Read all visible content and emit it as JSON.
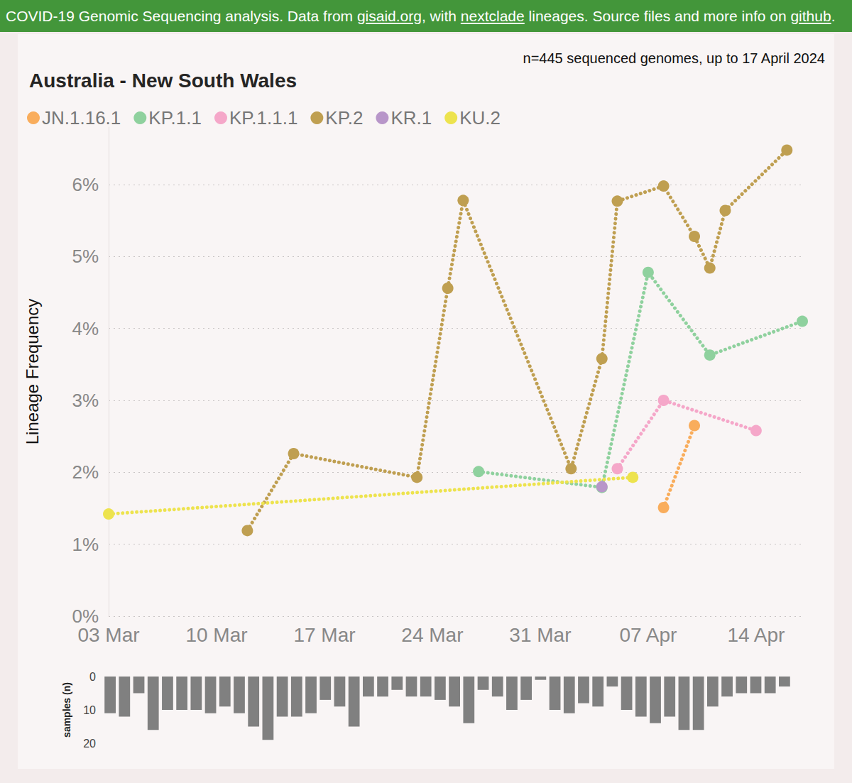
{
  "banner": [
    {
      "text": "COVID-19 Genomic Sequencing analysis. Data from ",
      "underline": false
    },
    {
      "text": "gisaid.org",
      "underline": true
    },
    {
      "text": ", with ",
      "underline": false
    },
    {
      "text": "nextclade",
      "underline": true
    },
    {
      "text": " lineages. Source files and more info on ",
      "underline": false
    },
    {
      "text": "github",
      "underline": true
    },
    {
      "text": ".",
      "underline": false
    }
  ],
  "chart_data": [
    {
      "type": "line",
      "title": "Australia - New South Wales",
      "subtitle": "n=445 sequenced genomes, up to 17 April 2024",
      "y_label": "Lineage Frequency",
      "categories": [
        "03 Mar",
        null,
        null,
        null,
        null,
        null,
        null,
        "10 Mar",
        null,
        null,
        null,
        null,
        null,
        null,
        "17 Mar",
        null,
        null,
        null,
        null,
        null,
        null,
        "24 Mar",
        null,
        null,
        null,
        null,
        null,
        null,
        "31 Mar",
        null,
        null,
        null,
        null,
        null,
        null,
        "07 Apr",
        null,
        null,
        null,
        null,
        null,
        null,
        "14 Apr",
        null,
        null,
        null
      ],
      "series": [
        {
          "name": "JN.1.16.1",
          "color": "#f9ad5c",
          "values": [
            null,
            null,
            null,
            null,
            null,
            null,
            null,
            null,
            null,
            null,
            null,
            null,
            null,
            null,
            null,
            null,
            null,
            null,
            null,
            null,
            null,
            null,
            null,
            null,
            null,
            null,
            null,
            null,
            null,
            null,
            null,
            null,
            null,
            null,
            null,
            null,
            1.51,
            null,
            2.65,
            null,
            null,
            null,
            null,
            null,
            null,
            null
          ]
        },
        {
          "name": "KP.1.1",
          "color": "#8fd19e",
          "values": [
            null,
            null,
            null,
            null,
            null,
            null,
            null,
            null,
            null,
            null,
            null,
            null,
            null,
            null,
            null,
            null,
            null,
            null,
            null,
            null,
            null,
            null,
            null,
            null,
            2.01,
            null,
            null,
            null,
            null,
            null,
            null,
            null,
            1.79,
            null,
            null,
            4.78,
            null,
            null,
            null,
            3.63,
            null,
            null,
            null,
            null,
            null,
            4.1
          ]
        },
        {
          "name": "KP.1.1.1",
          "color": "#f5a7c9",
          "values": [
            null,
            null,
            null,
            null,
            null,
            null,
            null,
            null,
            null,
            null,
            null,
            null,
            null,
            null,
            null,
            null,
            null,
            null,
            null,
            null,
            null,
            null,
            null,
            null,
            null,
            null,
            null,
            null,
            null,
            null,
            null,
            null,
            null,
            2.05,
            null,
            null,
            3,
            null,
            null,
            null,
            null,
            null,
            2.58,
            null,
            null,
            null
          ]
        },
        {
          "name": "KP.2",
          "color": "#bf9f51",
          "values": [
            null,
            null,
            null,
            null,
            null,
            null,
            null,
            null,
            null,
            1.19,
            null,
            null,
            2.26,
            null,
            null,
            null,
            null,
            null,
            null,
            null,
            1.93,
            null,
            4.56,
            5.78,
            null,
            null,
            null,
            null,
            null,
            null,
            2.05,
            null,
            3.58,
            5.77,
            null,
            null,
            5.98,
            null,
            5.28,
            4.84,
            5.64,
            null,
            null,
            null,
            6.48,
            null
          ]
        },
        {
          "name": "KR.1",
          "color": "#b896c9",
          "values": [
            null,
            null,
            null,
            null,
            null,
            null,
            null,
            null,
            null,
            null,
            null,
            null,
            null,
            null,
            null,
            null,
            null,
            null,
            null,
            null,
            null,
            null,
            null,
            null,
            null,
            null,
            null,
            null,
            null,
            null,
            null,
            null,
            1.8,
            null,
            null,
            null,
            null,
            null,
            null,
            null,
            null,
            null,
            null,
            null,
            null,
            null
          ]
        },
        {
          "name": "KU.2",
          "color": "#ede34e",
          "values": [
            1.42,
            null,
            null,
            null,
            null,
            null,
            null,
            null,
            null,
            null,
            null,
            null,
            null,
            null,
            null,
            null,
            null,
            null,
            null,
            null,
            null,
            null,
            null,
            null,
            null,
            null,
            null,
            null,
            null,
            null,
            null,
            null,
            null,
            null,
            1.93,
            null,
            null,
            null,
            null,
            null,
            null,
            null,
            null,
            null,
            null,
            null
          ]
        }
      ],
      "ylim": [
        0,
        6.8
      ],
      "yticks": [
        {
          "value": 0,
          "label": "0%"
        },
        {
          "value": 1,
          "label": "1%"
        },
        {
          "value": 2,
          "label": "2%"
        },
        {
          "value": 3,
          "label": "3%"
        },
        {
          "value": 4,
          "label": "4%"
        },
        {
          "value": 5,
          "label": "5%"
        },
        {
          "value": 6,
          "label": "6%"
        }
      ],
      "grid": true,
      "legend": "top-left",
      "marker": "circle",
      "line_style": "dotted"
    },
    {
      "type": "bar",
      "y_label": "samples (n)",
      "categories": [
        null,
        null,
        null,
        null,
        null,
        null,
        null,
        null,
        null,
        null,
        null,
        null,
        null,
        null,
        null,
        null,
        null,
        null,
        null,
        null,
        null,
        null,
        null,
        null,
        null,
        null,
        null,
        null,
        null,
        null,
        null,
        null,
        null,
        null,
        null,
        null,
        null,
        null,
        null,
        null,
        null,
        null,
        null,
        null,
        null,
        null,
        null,
        null
      ],
      "values": [
        11,
        12,
        5,
        16,
        10,
        10,
        10,
        11,
        9,
        11,
        15,
        19,
        12,
        12,
        11,
        7,
        9,
        15,
        6,
        6,
        4,
        6,
        6,
        7,
        9,
        14,
        4,
        6,
        10,
        7,
        1,
        10,
        11,
        8,
        9,
        3,
        10,
        12,
        14,
        12,
        16,
        16,
        9,
        6,
        5,
        5,
        5,
        3
      ],
      "color": "#808080",
      "ylim": [
        0,
        20
      ],
      "yticks": [
        0,
        10,
        20
      ],
      "grid": false,
      "tick_labels": "y"
    }
  ]
}
